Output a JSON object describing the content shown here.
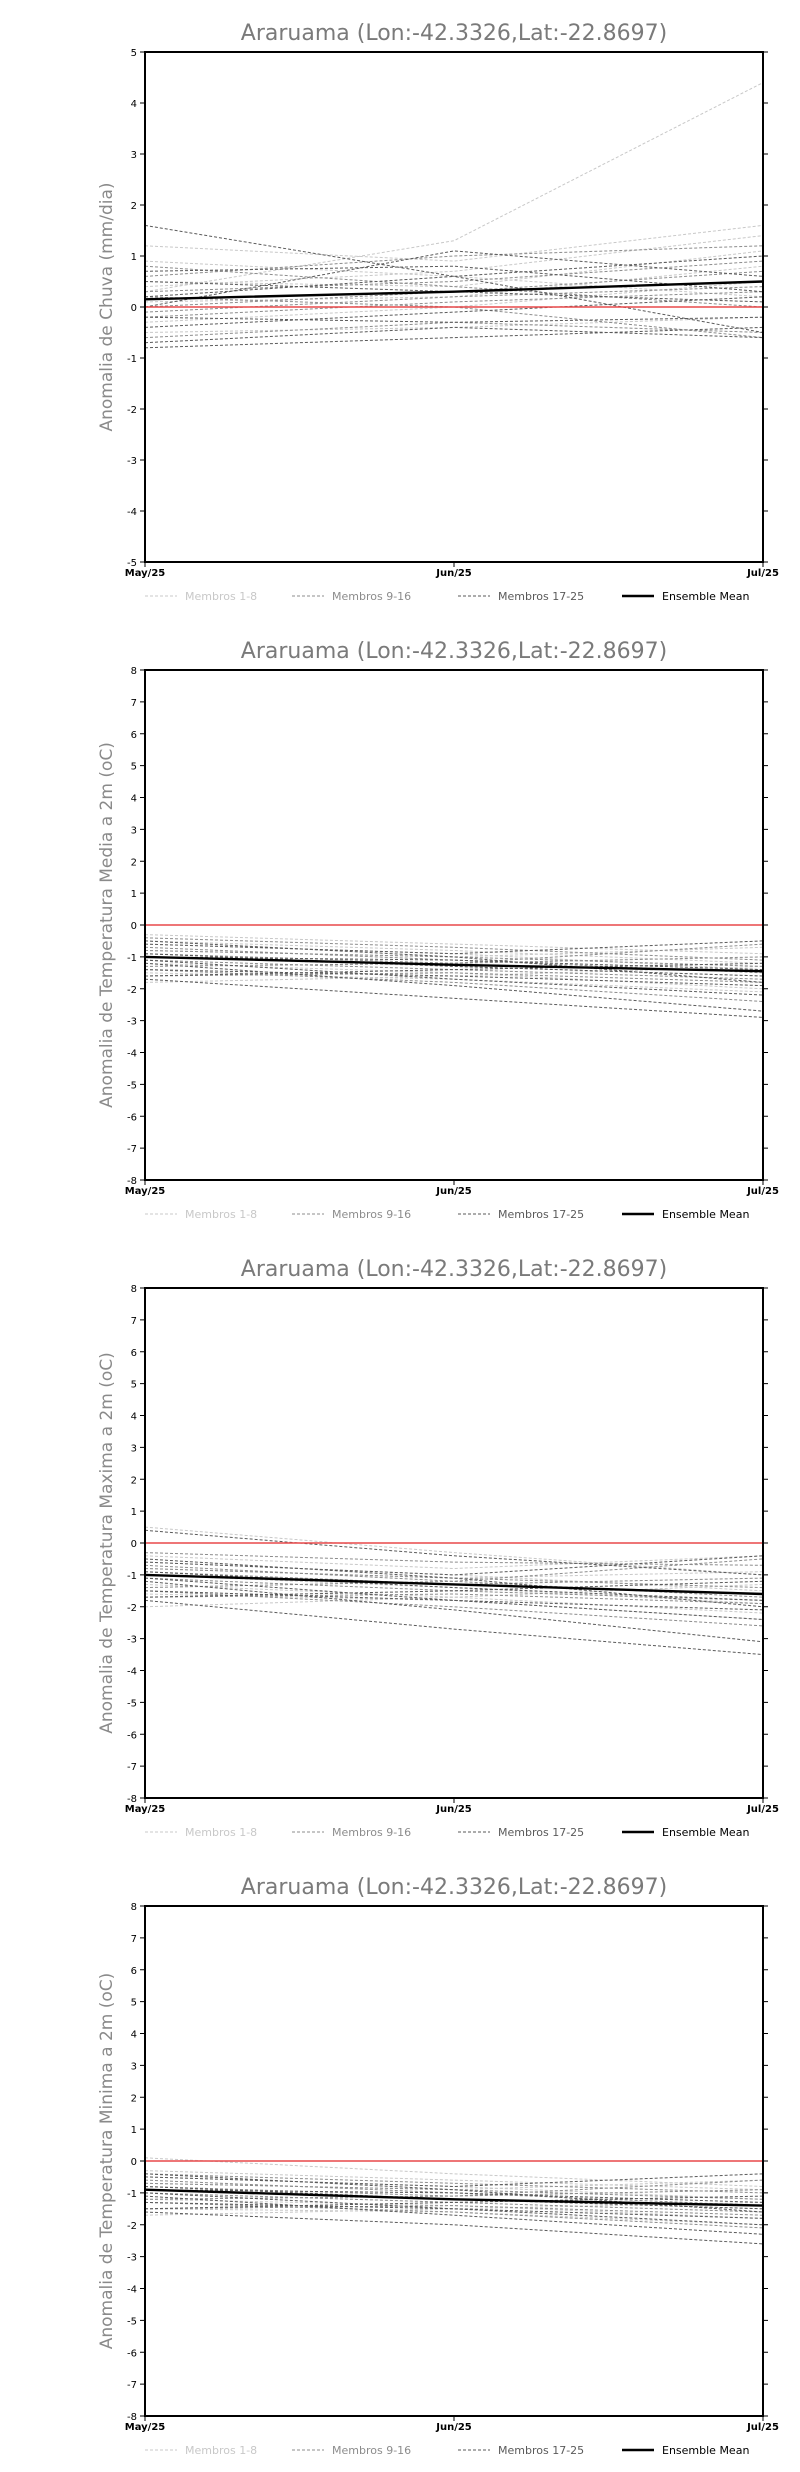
{
  "page_title": "",
  "legend": {
    "items": [
      "Membros 1-8",
      "Membros 9-16",
      "Membros 17-25",
      "Ensemble Mean"
    ],
    "colors": [
      "#c8c8c8",
      "#8c8c8c",
      "#5a5a5a",
      "#000000"
    ]
  },
  "chart_data": [
    {
      "type": "line",
      "title": "Araruama (Lon:-42.3326,Lat:-22.8697)",
      "ylabel": "Anomalia de Chuva (mm/dia)",
      "xlabel": "",
      "x": [
        "May/25",
        "Jun/25",
        "Jul/25"
      ],
      "ylim": [
        -5,
        5
      ],
      "yticks": [
        -5,
        -4,
        -3,
        -2,
        -1,
        0,
        1,
        2,
        3,
        4,
        5
      ],
      "zero_line": 0,
      "series": [
        {
          "group": 1,
          "values": [
            0.3,
            1.3,
            4.4
          ]
        },
        {
          "group": 1,
          "values": [
            1.2,
            0.9,
            1.6
          ]
        },
        {
          "group": 1,
          "values": [
            0.5,
            0.4,
            1.1
          ]
        },
        {
          "group": 1,
          "values": [
            0.1,
            0.2,
            0.8
          ]
        },
        {
          "group": 1,
          "values": [
            -0.3,
            0.0,
            0.5
          ]
        },
        {
          "group": 1,
          "values": [
            0.9,
            0.6,
            0.2
          ]
        },
        {
          "group": 1,
          "values": [
            0.4,
            0.7,
            1.4
          ]
        },
        {
          "group": 1,
          "values": [
            -0.5,
            -0.4,
            -0.2
          ]
        },
        {
          "group": 2,
          "values": [
            0.0,
            0.3,
            0.7
          ]
        },
        {
          "group": 2,
          "values": [
            0.6,
            1.0,
            1.2
          ]
        },
        {
          "group": 2,
          "values": [
            -0.2,
            0.1,
            0.3
          ]
        },
        {
          "group": 2,
          "values": [
            0.3,
            0.5,
            0.9
          ]
        },
        {
          "group": 2,
          "values": [
            -0.6,
            -0.3,
            -0.5
          ]
        },
        {
          "group": 2,
          "values": [
            0.8,
            0.4,
            0.0
          ]
        },
        {
          "group": 2,
          "values": [
            0.2,
            0.0,
            -0.6
          ]
        },
        {
          "group": 2,
          "values": [
            -0.1,
            0.2,
            0.4
          ]
        },
        {
          "group": 3,
          "values": [
            1.6,
            0.6,
            -0.5
          ]
        },
        {
          "group": 3,
          "values": [
            0.0,
            1.1,
            0.6
          ]
        },
        {
          "group": 3,
          "values": [
            -0.7,
            -0.4,
            -0.6
          ]
        },
        {
          "group": 3,
          "values": [
            0.5,
            0.3,
            0.1
          ]
        },
        {
          "group": 3,
          "values": [
            -0.4,
            -0.1,
            0.2
          ]
        },
        {
          "group": 3,
          "values": [
            0.2,
            0.6,
            1.0
          ]
        },
        {
          "group": 3,
          "values": [
            -0.2,
            -0.3,
            -0.2
          ]
        },
        {
          "group": 3,
          "values": [
            0.7,
            0.8,
            0.3
          ]
        },
        {
          "group": 3,
          "values": [
            -0.8,
            -0.6,
            -0.4
          ]
        },
        {
          "group": 4,
          "name": "Ensemble Mean",
          "values": [
            0.15,
            0.3,
            0.5
          ]
        }
      ]
    },
    {
      "type": "line",
      "title": "Araruama (Lon:-42.3326,Lat:-22.8697)",
      "ylabel": "Anomalia de Temperatura Media a 2m (oC)",
      "xlabel": "",
      "x": [
        "May/25",
        "Jun/25",
        "Jul/25"
      ],
      "ylim": [
        -8,
        8
      ],
      "yticks": [
        -8,
        -7,
        -6,
        -5,
        -4,
        -3,
        -2,
        -1,
        0,
        1,
        2,
        3,
        4,
        5,
        6,
        7,
        8
      ],
      "zero_line": 0,
      "series": [
        {
          "group": 1,
          "values": [
            -0.5,
            -0.8,
            -1.2
          ]
        },
        {
          "group": 1,
          "values": [
            -1.0,
            -1.3,
            -1.6
          ]
        },
        {
          "group": 1,
          "values": [
            -0.3,
            -0.6,
            -0.9
          ]
        },
        {
          "group": 1,
          "values": [
            -1.5,
            -1.7,
            -2.1
          ]
        },
        {
          "group": 1,
          "values": [
            -0.8,
            -1.0,
            -0.7
          ]
        },
        {
          "group": 1,
          "values": [
            -1.2,
            -1.5,
            -2.0
          ]
        },
        {
          "group": 1,
          "values": [
            -0.6,
            -0.9,
            -1.4
          ]
        },
        {
          "group": 1,
          "values": [
            -1.8,
            -1.6,
            -1.3
          ]
        },
        {
          "group": 2,
          "values": [
            -0.7,
            -1.1,
            -1.5
          ]
        },
        {
          "group": 2,
          "values": [
            -1.4,
            -1.8,
            -2.4
          ]
        },
        {
          "group": 2,
          "values": [
            -0.9,
            -1.2,
            -1.0
          ]
        },
        {
          "group": 2,
          "values": [
            -1.6,
            -1.5,
            -1.8
          ]
        },
        {
          "group": 2,
          "values": [
            -0.4,
            -0.7,
            -1.1
          ]
        },
        {
          "group": 2,
          "values": [
            -1.1,
            -1.4,
            -1.7
          ]
        },
        {
          "group": 2,
          "values": [
            -1.3,
            -1.2,
            -0.6
          ]
        },
        {
          "group": 2,
          "values": [
            -0.8,
            -1.0,
            -1.3
          ]
        },
        {
          "group": 3,
          "values": [
            -1.7,
            -2.3,
            -2.9
          ]
        },
        {
          "group": 3,
          "values": [
            -1.0,
            -1.1,
            -1.4
          ]
        },
        {
          "group": 3,
          "values": [
            -0.6,
            -0.9,
            -0.5
          ]
        },
        {
          "group": 3,
          "values": [
            -1.4,
            -1.6,
            -1.9
          ]
        },
        {
          "group": 3,
          "values": [
            -1.2,
            -1.9,
            -2.7
          ]
        },
        {
          "group": 3,
          "values": [
            -0.9,
            -1.3,
            -1.6
          ]
        },
        {
          "group": 3,
          "values": [
            -1.6,
            -1.4,
            -1.2
          ]
        },
        {
          "group": 3,
          "values": [
            -0.5,
            -1.0,
            -1.8
          ]
        },
        {
          "group": 3,
          "values": [
            -1.1,
            -1.7,
            -2.2
          ]
        },
        {
          "group": 4,
          "name": "Ensemble Mean",
          "values": [
            -1.0,
            -1.25,
            -1.45
          ]
        }
      ]
    },
    {
      "type": "line",
      "title": "Araruama (Lon:-42.3326,Lat:-22.8697)",
      "ylabel": "Anomalia de Temperatura Maxima a 2m (oC)",
      "xlabel": "",
      "x": [
        "May/25",
        "Jun/25",
        "Jul/25"
      ],
      "ylim": [
        -8,
        8
      ],
      "yticks": [
        -8,
        -7,
        -6,
        -5,
        -4,
        -3,
        -2,
        -1,
        0,
        1,
        2,
        3,
        4,
        5,
        6,
        7,
        8
      ],
      "zero_line": 0,
      "series": [
        {
          "group": 1,
          "values": [
            0.5,
            -0.3,
            -1.0
          ]
        },
        {
          "group": 1,
          "values": [
            -1.0,
            -1.4,
            -1.9
          ]
        },
        {
          "group": 1,
          "values": [
            -0.4,
            -0.8,
            -0.4
          ]
        },
        {
          "group": 1,
          "values": [
            -1.6,
            -1.8,
            -2.4
          ]
        },
        {
          "group": 1,
          "values": [
            -0.8,
            -1.1,
            -0.9
          ]
        },
        {
          "group": 1,
          "values": [
            -1.3,
            -1.7,
            -2.2
          ]
        },
        {
          "group": 1,
          "values": [
            -0.6,
            -1.0,
            -1.5
          ]
        },
        {
          "group": 1,
          "values": [
            -2.0,
            -1.7,
            -1.3
          ]
        },
        {
          "group": 2,
          "values": [
            -0.7,
            -1.2,
            -1.7
          ]
        },
        {
          "group": 2,
          "values": [
            -1.5,
            -2.0,
            -2.6
          ]
        },
        {
          "group": 2,
          "values": [
            -0.9,
            -1.3,
            -1.1
          ]
        },
        {
          "group": 2,
          "values": [
            -1.7,
            -1.6,
            -1.9
          ]
        },
        {
          "group": 2,
          "values": [
            -0.3,
            -0.6,
            -0.7
          ]
        },
        {
          "group": 2,
          "values": [
            -1.1,
            -1.5,
            -1.8
          ]
        },
        {
          "group": 2,
          "values": [
            -1.4,
            -1.2,
            -0.5
          ]
        },
        {
          "group": 2,
          "values": [
            -0.8,
            -1.1,
            -1.4
          ]
        },
        {
          "group": 3,
          "values": [
            -1.8,
            -2.7,
            -3.5
          ]
        },
        {
          "group": 3,
          "values": [
            0.4,
            -0.4,
            -1.0
          ]
        },
        {
          "group": 3,
          "values": [
            -0.6,
            -1.0,
            -0.4
          ]
        },
        {
          "group": 3,
          "values": [
            -1.5,
            -1.8,
            -2.1
          ]
        },
        {
          "group": 3,
          "values": [
            -1.2,
            -2.1,
            -3.1
          ]
        },
        {
          "group": 3,
          "values": [
            -0.9,
            -1.4,
            -1.8
          ]
        },
        {
          "group": 3,
          "values": [
            -1.7,
            -1.5,
            -1.2
          ]
        },
        {
          "group": 3,
          "values": [
            -0.5,
            -1.1,
            -2.0
          ]
        },
        {
          "group": 3,
          "values": [
            -1.1,
            -1.8,
            -2.4
          ]
        },
        {
          "group": 4,
          "name": "Ensemble Mean",
          "values": [
            -1.0,
            -1.3,
            -1.6
          ]
        }
      ]
    },
    {
      "type": "line",
      "title": "Araruama (Lon:-42.3326,Lat:-22.8697)",
      "ylabel": "Anomalia de Temperatura Minima a 2m (oC)",
      "xlabel": "",
      "x": [
        "May/25",
        "Jun/25",
        "Jul/25"
      ],
      "ylim": [
        -8,
        8
      ],
      "yticks": [
        -8,
        -7,
        -6,
        -5,
        -4,
        -3,
        -2,
        -1,
        0,
        1,
        2,
        3,
        4,
        5,
        6,
        7,
        8
      ],
      "zero_line": 0,
      "series": [
        {
          "group": 1,
          "values": [
            0.1,
            -0.4,
            -0.8
          ]
        },
        {
          "group": 1,
          "values": [
            -0.9,
            -1.2,
            -1.5
          ]
        },
        {
          "group": 1,
          "values": [
            -0.3,
            -0.6,
            -0.9
          ]
        },
        {
          "group": 1,
          "values": [
            -1.5,
            -1.6,
            -2.0
          ]
        },
        {
          "group": 1,
          "values": [
            -0.7,
            -0.9,
            -0.6
          ]
        },
        {
          "group": 1,
          "values": [
            -1.2,
            -1.4,
            -1.8
          ]
        },
        {
          "group": 1,
          "values": [
            -0.5,
            -0.8,
            -1.2
          ]
        },
        {
          "group": 1,
          "values": [
            -1.7,
            -1.5,
            -1.3
          ]
        },
        {
          "group": 2,
          "values": [
            -0.6,
            -1.0,
            -1.4
          ]
        },
        {
          "group": 2,
          "values": [
            -1.3,
            -1.6,
            -2.1
          ]
        },
        {
          "group": 2,
          "values": [
            -0.8,
            -1.1,
            -0.9
          ]
        },
        {
          "group": 2,
          "values": [
            -1.5,
            -1.4,
            -1.7
          ]
        },
        {
          "group": 2,
          "values": [
            -0.4,
            -0.7,
            -1.0
          ]
        },
        {
          "group": 2,
          "values": [
            -1.0,
            -1.3,
            -1.6
          ]
        },
        {
          "group": 2,
          "values": [
            -1.2,
            -1.1,
            -0.6
          ]
        },
        {
          "group": 2,
          "values": [
            -0.7,
            -0.9,
            -1.2
          ]
        },
        {
          "group": 3,
          "values": [
            -1.6,
            -2.0,
            -2.6
          ]
        },
        {
          "group": 3,
          "values": [
            -0.9,
            -1.0,
            -1.3
          ]
        },
        {
          "group": 3,
          "values": [
            -0.5,
            -0.8,
            -0.4
          ]
        },
        {
          "group": 3,
          "values": [
            -1.3,
            -1.5,
            -1.8
          ]
        },
        {
          "group": 3,
          "values": [
            -1.1,
            -1.7,
            -2.3
          ]
        },
        {
          "group": 3,
          "values": [
            -0.8,
            -1.2,
            -1.5
          ]
        },
        {
          "group": 3,
          "values": [
            -1.5,
            -1.3,
            -1.1
          ]
        },
        {
          "group": 3,
          "values": [
            -0.4,
            -0.9,
            -1.6
          ]
        },
        {
          "group": 3,
          "values": [
            -1.0,
            -1.5,
            -2.0
          ]
        },
        {
          "group": 4,
          "name": "Ensemble Mean",
          "values": [
            -0.9,
            -1.2,
            -1.4
          ]
        }
      ]
    }
  ]
}
